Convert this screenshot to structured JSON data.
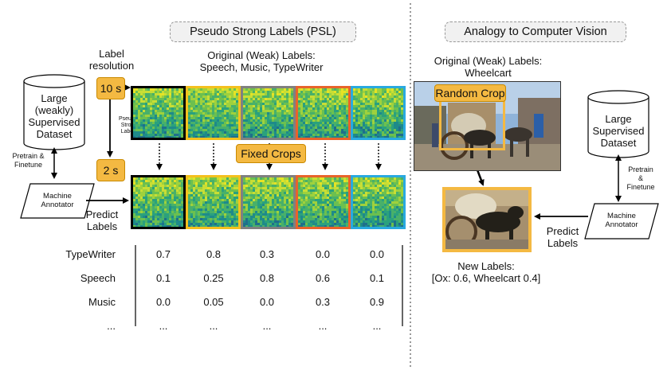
{
  "titles": {
    "psl": "Pseudo Strong Labels (PSL)",
    "cv": "Analogy to Computer Vision"
  },
  "left": {
    "label_resolution_line1": "Label",
    "label_resolution_line2": "resolution",
    "res_10s": "10 s",
    "res_2s": "2 s",
    "pseudo_strong_line1": "Pseudo-",
    "pseudo_strong_line2": "Strong",
    "pseudo_strong_line3": "Labels",
    "weak_labels_line1": "Original (Weak) Labels:",
    "weak_labels_line2": "Speech, Music, TypeWriter",
    "fixed_crops": "Fixed Crops",
    "dataset_line1": "Large",
    "dataset_line2": "(weakly)",
    "dataset_line3": "Supervised",
    "dataset_line4": "Dataset",
    "pretrain_line1": "Pretrain &",
    "pretrain_line2": "Finetune",
    "annotator_line1": "Machine",
    "annotator_line2": "Annotator",
    "predict_line1": "Predict",
    "predict_line2": "Labels",
    "crop_colors": [
      "#000000",
      "#f4c01e",
      "#808080",
      "#e8632b",
      "#29a9e0"
    ]
  },
  "table": {
    "rows": [
      {
        "label": "TypeWriter",
        "values": [
          "0.7",
          "0.8",
          "0.3",
          "0.0",
          "0.0"
        ]
      },
      {
        "label": "Speech",
        "values": [
          "0.1",
          "0.25",
          "0.8",
          "0.6",
          "0.1"
        ]
      },
      {
        "label": "Music",
        "values": [
          "0.0",
          "0.05",
          "0.0",
          "0.3",
          "0.9"
        ]
      },
      {
        "label": "...",
        "values": [
          "...",
          "...",
          "...",
          "...",
          "..."
        ]
      }
    ]
  },
  "right": {
    "weak_labels_line1": "Original (Weak) Labels:",
    "weak_labels_line2": "Wheelcart",
    "random_crop": "Random Crop",
    "dataset_line1": "Large",
    "dataset_line2": "Supervised",
    "dataset_line3": "Dataset",
    "pretrain_line1": "Pretrain",
    "pretrain_line2": "&",
    "pretrain_line3": "Finetune",
    "annotator_line1": "Machine",
    "annotator_line2": "Annotator",
    "predict_line1": "Predict",
    "predict_line2": "Labels",
    "new_labels_line1": "New Labels:",
    "new_labels_line2": "[Ox: 0.6, Wheelcart 0.4]"
  }
}
